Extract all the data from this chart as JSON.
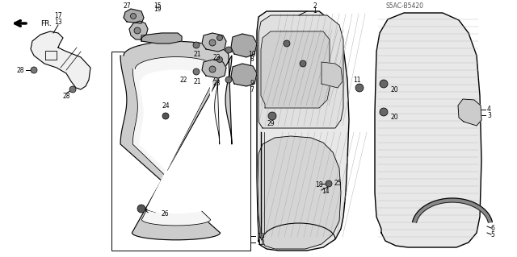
{
  "bg_color": "#ffffff",
  "line_color": "#000000",
  "stamp": "S5AC-B5420",
  "direction_label": "FR.",
  "fig_w": 6.4,
  "fig_h": 3.19,
  "dpi": 100
}
